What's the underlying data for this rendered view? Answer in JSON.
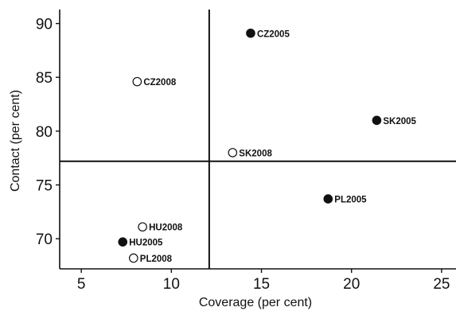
{
  "chart_data": {
    "type": "scatter",
    "title": "",
    "xlabel": "Coverage (per cent)",
    "ylabel": "Contact (per cent)",
    "xlim": [
      3.8,
      25.8
    ],
    "ylim": [
      67.2,
      91.3
    ],
    "xticks": [
      5,
      10,
      15,
      20,
      25
    ],
    "yticks": [
      70,
      75,
      80,
      85,
      90
    ],
    "grid": false,
    "reference_lines": {
      "x": 12.1,
      "y": 77.2
    },
    "marker_styles": {
      "2005": "filled",
      "2008": "open"
    },
    "points": [
      {
        "label": "CZ2005",
        "x": 14.4,
        "y": 89.1,
        "marker": "filled"
      },
      {
        "label": "CZ2008",
        "x": 8.1,
        "y": 84.6,
        "marker": "open"
      },
      {
        "label": "SK2005",
        "x": 21.4,
        "y": 81.0,
        "marker": "filled"
      },
      {
        "label": "SK2008",
        "x": 13.4,
        "y": 78.0,
        "marker": "open"
      },
      {
        "label": "PL2005",
        "x": 18.7,
        "y": 73.7,
        "marker": "filled"
      },
      {
        "label": "HU2008",
        "x": 8.4,
        "y": 71.1,
        "marker": "open"
      },
      {
        "label": "HU2005",
        "x": 7.3,
        "y": 69.7,
        "marker": "filled"
      },
      {
        "label": "PL2008",
        "x": 7.9,
        "y": 68.2,
        "marker": "open"
      }
    ]
  }
}
